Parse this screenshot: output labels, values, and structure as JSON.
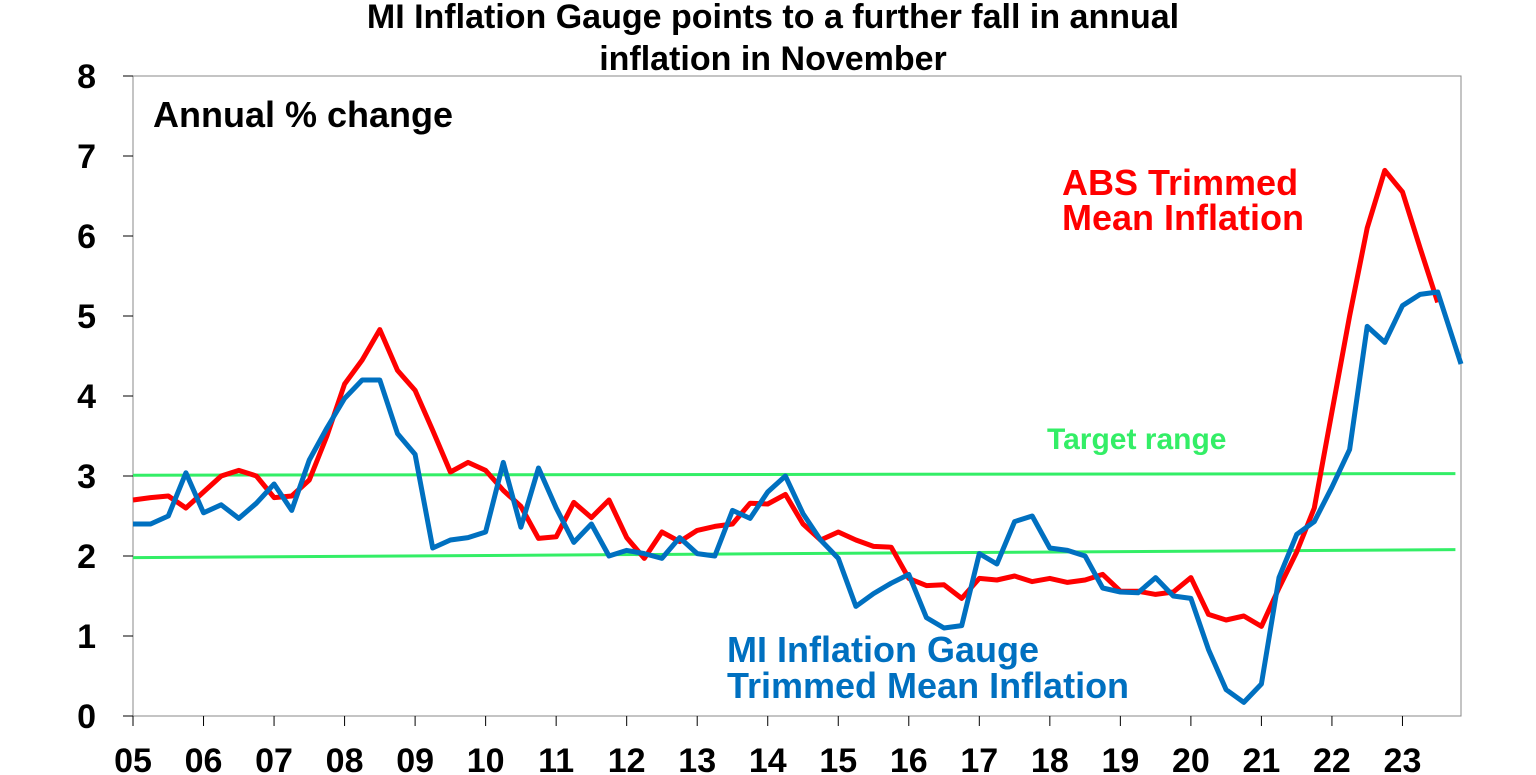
{
  "chart_data": {
    "type": "line",
    "title_lines": [
      "MI Inflation Gauge points to a further fall in annual",
      "inflation in November"
    ],
    "ylabel": "Annual % change",
    "ylim": [
      0,
      8
    ],
    "yticks": [
      "0",
      "1",
      "2",
      "3",
      "4",
      "5",
      "6",
      "7",
      "8"
    ],
    "xlim": [
      2005.0,
      2023.83
    ],
    "xticks": [
      {
        "x": 2005,
        "label": "05"
      },
      {
        "x": 2006,
        "label": "06"
      },
      {
        "x": 2007,
        "label": "07"
      },
      {
        "x": 2008,
        "label": "08"
      },
      {
        "x": 2009,
        "label": "09"
      },
      {
        "x": 2010,
        "label": "10"
      },
      {
        "x": 2011,
        "label": "11"
      },
      {
        "x": 2012,
        "label": "12"
      },
      {
        "x": 2013,
        "label": "13"
      },
      {
        "x": 2014,
        "label": "14"
      },
      {
        "x": 2015,
        "label": "15"
      },
      {
        "x": 2016,
        "label": "16"
      },
      {
        "x": 2017,
        "label": "17"
      },
      {
        "x": 2018,
        "label": "18"
      },
      {
        "x": 2019,
        "label": "19"
      },
      {
        "x": 2020,
        "label": "20"
      },
      {
        "x": 2021,
        "label": "21"
      },
      {
        "x": 2022,
        "label": "22"
      },
      {
        "x": 2023,
        "label": "23"
      }
    ],
    "grid": false,
    "colors": {
      "abs": "#ff0000",
      "mi": "#0070c0",
      "target": "#33ee66"
    },
    "series": [
      {
        "name": "ABS Trimmed Mean Inflation",
        "label_lines": [
          "ABS Trimmed",
          "Mean Inflation"
        ],
        "color": "#ff0000",
        "x": [
          2005.0,
          2005.25,
          2005.5,
          2005.75,
          2006.0,
          2006.25,
          2006.5,
          2006.75,
          2007.0,
          2007.25,
          2007.5,
          2007.75,
          2008.0,
          2008.25,
          2008.5,
          2008.75,
          2009.0,
          2009.25,
          2009.5,
          2009.75,
          2010.0,
          2010.25,
          2010.5,
          2010.75,
          2011.0,
          2011.25,
          2011.5,
          2011.75,
          2012.0,
          2012.25,
          2012.5,
          2012.75,
          2013.0,
          2013.25,
          2013.5,
          2013.75,
          2014.0,
          2014.25,
          2014.5,
          2014.75,
          2015.0,
          2015.25,
          2015.5,
          2015.75,
          2016.0,
          2016.25,
          2016.5,
          2016.75,
          2017.0,
          2017.25,
          2017.5,
          2017.75,
          2018.0,
          2018.25,
          2018.5,
          2018.75,
          2019.0,
          2019.25,
          2019.5,
          2019.75,
          2020.0,
          2020.25,
          2020.5,
          2020.75,
          2021.0,
          2021.25,
          2021.5,
          2021.75,
          2022.0,
          2022.25,
          2022.5,
          2022.75,
          2023.0,
          2023.25,
          2023.5
        ],
        "values": [
          2.7,
          2.73,
          2.75,
          2.6,
          2.8,
          3.0,
          3.07,
          3.0,
          2.73,
          2.75,
          2.95,
          3.5,
          4.15,
          4.45,
          4.83,
          4.32,
          4.07,
          3.57,
          3.05,
          3.17,
          3.07,
          2.82,
          2.62,
          2.22,
          2.24,
          2.67,
          2.48,
          2.7,
          2.23,
          1.97,
          2.3,
          2.18,
          2.32,
          2.37,
          2.4,
          2.66,
          2.65,
          2.77,
          2.4,
          2.2,
          2.3,
          2.2,
          2.12,
          2.11,
          1.72,
          1.63,
          1.64,
          1.47,
          1.72,
          1.7,
          1.75,
          1.68,
          1.72,
          1.67,
          1.7,
          1.77,
          1.56,
          1.56,
          1.52,
          1.55,
          1.73,
          1.27,
          1.2,
          1.25,
          1.12,
          1.6,
          2.05,
          2.6,
          3.8,
          5.0,
          6.1,
          6.82,
          6.55,
          5.85,
          5.17
        ]
      },
      {
        "name": "MI Inflation Gauge Trimmed Mean Inflation",
        "label_lines": [
          "MI Inflation Gauge",
          "Trimmed Mean Inflation"
        ],
        "color": "#0070c0",
        "x": [
          2005.0,
          2005.25,
          2005.5,
          2005.75,
          2006.0,
          2006.25,
          2006.5,
          2006.75,
          2007.0,
          2007.25,
          2007.5,
          2007.75,
          2008.0,
          2008.25,
          2008.5,
          2008.75,
          2009.0,
          2009.25,
          2009.5,
          2009.75,
          2010.0,
          2010.25,
          2010.5,
          2010.75,
          2011.0,
          2011.25,
          2011.5,
          2011.75,
          2012.0,
          2012.25,
          2012.5,
          2012.75,
          2013.0,
          2013.25,
          2013.5,
          2013.75,
          2014.0,
          2014.25,
          2014.5,
          2014.75,
          2015.0,
          2015.25,
          2015.5,
          2015.75,
          2016.0,
          2016.25,
          2016.5,
          2016.75,
          2017.0,
          2017.25,
          2017.5,
          2017.75,
          2018.0,
          2018.25,
          2018.5,
          2018.75,
          2019.0,
          2019.25,
          2019.5,
          2019.75,
          2020.0,
          2020.25,
          2020.5,
          2020.75,
          2021.0,
          2021.25,
          2021.5,
          2021.75,
          2022.0,
          2022.25,
          2022.5,
          2022.75,
          2023.0,
          2023.25,
          2023.5,
          2023.83
        ],
        "values": [
          2.4,
          2.4,
          2.5,
          3.04,
          2.54,
          2.64,
          2.47,
          2.66,
          2.9,
          2.57,
          3.2,
          3.6,
          3.97,
          4.2,
          4.2,
          3.53,
          3.27,
          2.1,
          2.2,
          2.23,
          2.3,
          3.17,
          2.36,
          3.1,
          2.6,
          2.17,
          2.4,
          2.0,
          2.07,
          2.03,
          1.97,
          2.23,
          2.03,
          2.0,
          2.57,
          2.47,
          2.8,
          3.0,
          2.53,
          2.2,
          1.97,
          1.37,
          1.53,
          1.66,
          1.77,
          1.23,
          1.1,
          1.13,
          2.03,
          1.9,
          2.43,
          2.5,
          2.1,
          2.07,
          2.0,
          1.6,
          1.55,
          1.54,
          1.73,
          1.5,
          1.47,
          0.83,
          0.33,
          0.17,
          0.4,
          1.73,
          2.27,
          2.43,
          2.86,
          3.33,
          4.87,
          4.67,
          5.13,
          5.27,
          5.3,
          4.4
        ]
      }
    ],
    "target_range": {
      "label": "Target range",
      "lower": {
        "x": [
          2005.0,
          2023.75
        ],
        "values": [
          1.98,
          2.08
        ]
      },
      "upper": {
        "x": [
          2005.0,
          2023.75
        ],
        "values": [
          3.01,
          3.03
        ]
      }
    }
  }
}
